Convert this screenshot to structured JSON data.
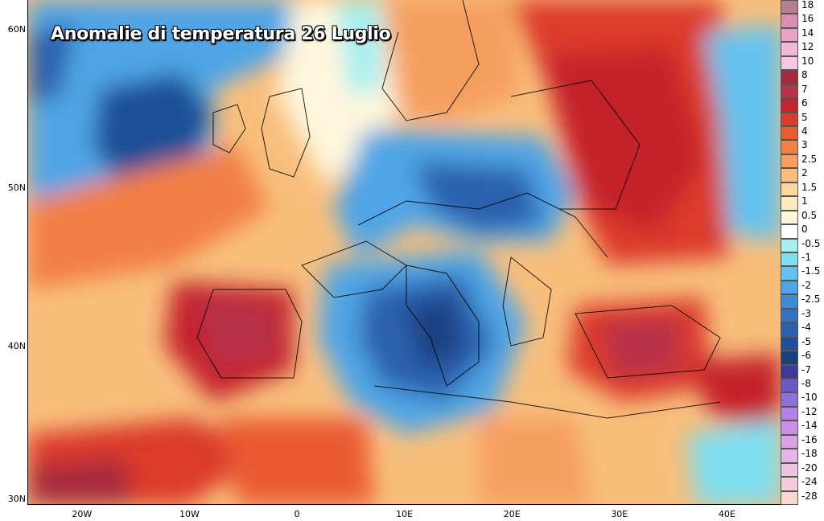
{
  "title": "Anomalie di temperatura 26 Luglio",
  "latitude_labels": [
    {
      "label": "60N",
      "value": 60
    },
    {
      "label": "50N",
      "value": 50
    },
    {
      "label": "40N",
      "value": 40
    },
    {
      "label": "30N",
      "value": 30
    }
  ],
  "longitude_labels": [
    {
      "label": "20W",
      "value": -20
    },
    {
      "label": "10W",
      "value": -10
    },
    {
      "label": "0",
      "value": 0
    },
    {
      "label": "10E",
      "value": 10
    },
    {
      "label": "20E",
      "value": 20
    },
    {
      "label": "30E",
      "value": 30
    },
    {
      "label": "40E",
      "value": 40
    }
  ],
  "colorbar": {
    "levels": [
      {
        "label": "18",
        "color": "#b77d8f"
      },
      {
        "label": "16",
        "color": "#d98fb0"
      },
      {
        "label": "14",
        "color": "#e7a3c8"
      },
      {
        "label": "12",
        "color": "#f2b6d8"
      },
      {
        "label": "10",
        "color": "#f6c8e2"
      },
      {
        "label": "8",
        "color": "#a52a3c"
      },
      {
        "label": "7",
        "color": "#b8334a"
      },
      {
        "label": "6",
        "color": "#c4232b"
      },
      {
        "label": "5",
        "color": "#dc3a2a"
      },
      {
        "label": "4",
        "color": "#ea5a33"
      },
      {
        "label": "3",
        "color": "#f27f45"
      },
      {
        "label": "2.5",
        "color": "#f59f5e"
      },
      {
        "label": "2",
        "color": "#f8bf7c"
      },
      {
        "label": "1.5",
        "color": "#fbd79b"
      },
      {
        "label": "1",
        "color": "#fdebbd"
      },
      {
        "label": "0.5",
        "color": "#fff7dd"
      },
      {
        "label": "0",
        "color": "#ffffff"
      },
      {
        "label": "-0.5",
        "color": "#a6eff0"
      },
      {
        "label": "-1",
        "color": "#7fdff0"
      },
      {
        "label": "-1.5",
        "color": "#63c3ee"
      },
      {
        "label": "-2",
        "color": "#4fa5e6"
      },
      {
        "label": "-2.5",
        "color": "#3d8ad6"
      },
      {
        "label": "-3",
        "color": "#3274c2"
      },
      {
        "label": "-4",
        "color": "#2a60ad"
      },
      {
        "label": "-5",
        "color": "#1f4f96"
      },
      {
        "label": "-6",
        "color": "#1c3f80"
      },
      {
        "label": "-7",
        "color": "#3b3a9a"
      },
      {
        "label": "-8",
        "color": "#6a5ac8"
      },
      {
        "label": "-10",
        "color": "#8f6fdc"
      },
      {
        "label": "-12",
        "color": "#b482e6"
      },
      {
        "label": "-14",
        "color": "#cc8fe6"
      },
      {
        "label": "-16",
        "color": "#dca0e4"
      },
      {
        "label": "-18",
        "color": "#e8b4e6"
      },
      {
        "label": "-20",
        "color": "#efc2df"
      },
      {
        "label": "-24",
        "color": "#f4cdd8"
      },
      {
        "label": "-28",
        "color": "#f8d8cf"
      }
    ]
  }
}
